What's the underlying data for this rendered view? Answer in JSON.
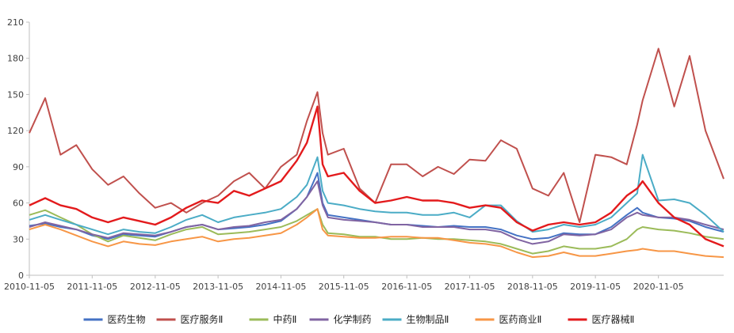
{
  "chart_data": {
    "type": "line",
    "title": "",
    "xlabel": "",
    "ylabel": "",
    "ylim": [
      0,
      210
    ],
    "yticks": [
      0,
      30,
      60,
      90,
      120,
      150,
      180,
      210
    ],
    "xlim": [
      "2010-11-05",
      "2021-11-19"
    ],
    "xticks": [
      "2010-11-05",
      "2011-11-05",
      "2012-11-05",
      "2013-11-05",
      "2014-11-05",
      "2015-11-05",
      "2016-11-05",
      "2017-11-05",
      "2018-11-05",
      "2019-11-05",
      "2020-11-05"
    ],
    "grid": false,
    "legend_position": "bottom",
    "x": [
      "2010-11-05",
      "2011-02-05",
      "2011-05-05",
      "2011-08-05",
      "2011-11-05",
      "2012-02-05",
      "2012-05-05",
      "2012-08-05",
      "2012-11-05",
      "2013-02-05",
      "2013-05-05",
      "2013-08-05",
      "2013-11-05",
      "2014-02-05",
      "2014-05-05",
      "2014-08-05",
      "2014-11-05",
      "2015-02-05",
      "2015-04-05",
      "2015-06-05",
      "2015-07-05",
      "2015-08-05",
      "2015-11-05",
      "2016-02-05",
      "2016-05-05",
      "2016-08-05",
      "2016-11-05",
      "2017-02-05",
      "2017-05-05",
      "2017-08-05",
      "2017-11-05",
      "2018-02-05",
      "2018-05-05",
      "2018-08-05",
      "2018-11-05",
      "2019-02-05",
      "2019-05-05",
      "2019-08-05",
      "2019-11-05",
      "2020-02-05",
      "2020-05-05",
      "2020-07-05",
      "2020-08-05",
      "2020-11-05",
      "2021-02-05",
      "2021-05-05",
      "2021-08-05",
      "2021-11-19"
    ],
    "series": [
      {
        "name": "医药生物",
        "color": "#4472C4",
        "values": [
          41,
          43,
          40,
          38,
          33,
          30,
          34,
          33,
          32,
          36,
          40,
          42,
          38,
          39,
          40,
          42,
          45,
          55,
          65,
          85,
          60,
          50,
          48,
          46,
          44,
          42,
          42,
          41,
          40,
          41,
          40,
          40,
          38,
          33,
          30,
          31,
          35,
          34,
          34,
          40,
          50,
          56,
          52,
          48,
          47,
          45,
          40,
          36
        ]
      },
      {
        "name": "医疗服务Ⅱ",
        "color": "#C0504D",
        "values": [
          118,
          147,
          100,
          108,
          88,
          75,
          82,
          68,
          56,
          60,
          52,
          60,
          66,
          78,
          85,
          72,
          90,
          100,
          128,
          152,
          118,
          100,
          105,
          72,
          60,
          92,
          92,
          82,
          90,
          84,
          96,
          95,
          112,
          105,
          72,
          66,
          85,
          44,
          100,
          98,
          92,
          125,
          145,
          188,
          140,
          182,
          120,
          80
        ]
      },
      {
        "name": "中药Ⅱ",
        "color": "#9BBB59",
        "values": [
          50,
          54,
          48,
          42,
          34,
          28,
          33,
          31,
          29,
          34,
          38,
          40,
          34,
          35,
          36,
          38,
          40,
          45,
          50,
          55,
          42,
          35,
          34,
          32,
          32,
          30,
          30,
          31,
          30,
          30,
          29,
          28,
          26,
          22,
          18,
          20,
          24,
          22,
          22,
          24,
          30,
          38,
          40,
          38,
          37,
          35,
          32,
          30
        ]
      },
      {
        "name": "化学制药",
        "color": "#8064A2",
        "values": [
          40,
          44,
          41,
          38,
          34,
          31,
          35,
          34,
          33,
          36,
          40,
          42,
          38,
          40,
          41,
          44,
          46,
          55,
          65,
          78,
          58,
          48,
          46,
          45,
          44,
          42,
          42,
          40,
          40,
          40,
          38,
          38,
          36,
          30,
          26,
          28,
          34,
          33,
          34,
          38,
          48,
          52,
          50,
          48,
          48,
          46,
          42,
          38
        ]
      },
      {
        "name": "生物制品Ⅱ",
        "color": "#4BACC6",
        "values": [
          46,
          50,
          46,
          42,
          38,
          34,
          38,
          36,
          35,
          40,
          46,
          50,
          44,
          48,
          50,
          52,
          55,
          65,
          75,
          98,
          70,
          60,
          58,
          55,
          53,
          52,
          52,
          50,
          50,
          52,
          48,
          58,
          58,
          45,
          36,
          38,
          42,
          40,
          42,
          48,
          60,
          68,
          100,
          62,
          63,
          60,
          50,
          36
        ]
      },
      {
        "name": "医药商业Ⅱ",
        "color": "#F79646",
        "values": [
          38,
          42,
          38,
          33,
          28,
          24,
          28,
          26,
          25,
          28,
          30,
          32,
          28,
          30,
          31,
          33,
          35,
          42,
          48,
          55,
          38,
          33,
          32,
          31,
          31,
          32,
          32,
          31,
          31,
          29,
          27,
          26,
          24,
          19,
          15,
          16,
          19,
          16,
          16,
          18,
          20,
          21,
          22,
          20,
          20,
          18,
          16,
          15
        ]
      },
      {
        "name": "医疗器械Ⅱ",
        "color": "#E31A1C",
        "values": [
          58,
          64,
          58,
          55,
          48,
          44,
          48,
          45,
          42,
          48,
          56,
          62,
          60,
          70,
          66,
          72,
          78,
          95,
          110,
          140,
          92,
          82,
          85,
          70,
          60,
          62,
          65,
          62,
          62,
          60,
          56,
          58,
          56,
          44,
          37,
          42,
          44,
          42,
          44,
          52,
          66,
          72,
          78,
          60,
          48,
          42,
          30,
          24
        ]
      }
    ]
  }
}
